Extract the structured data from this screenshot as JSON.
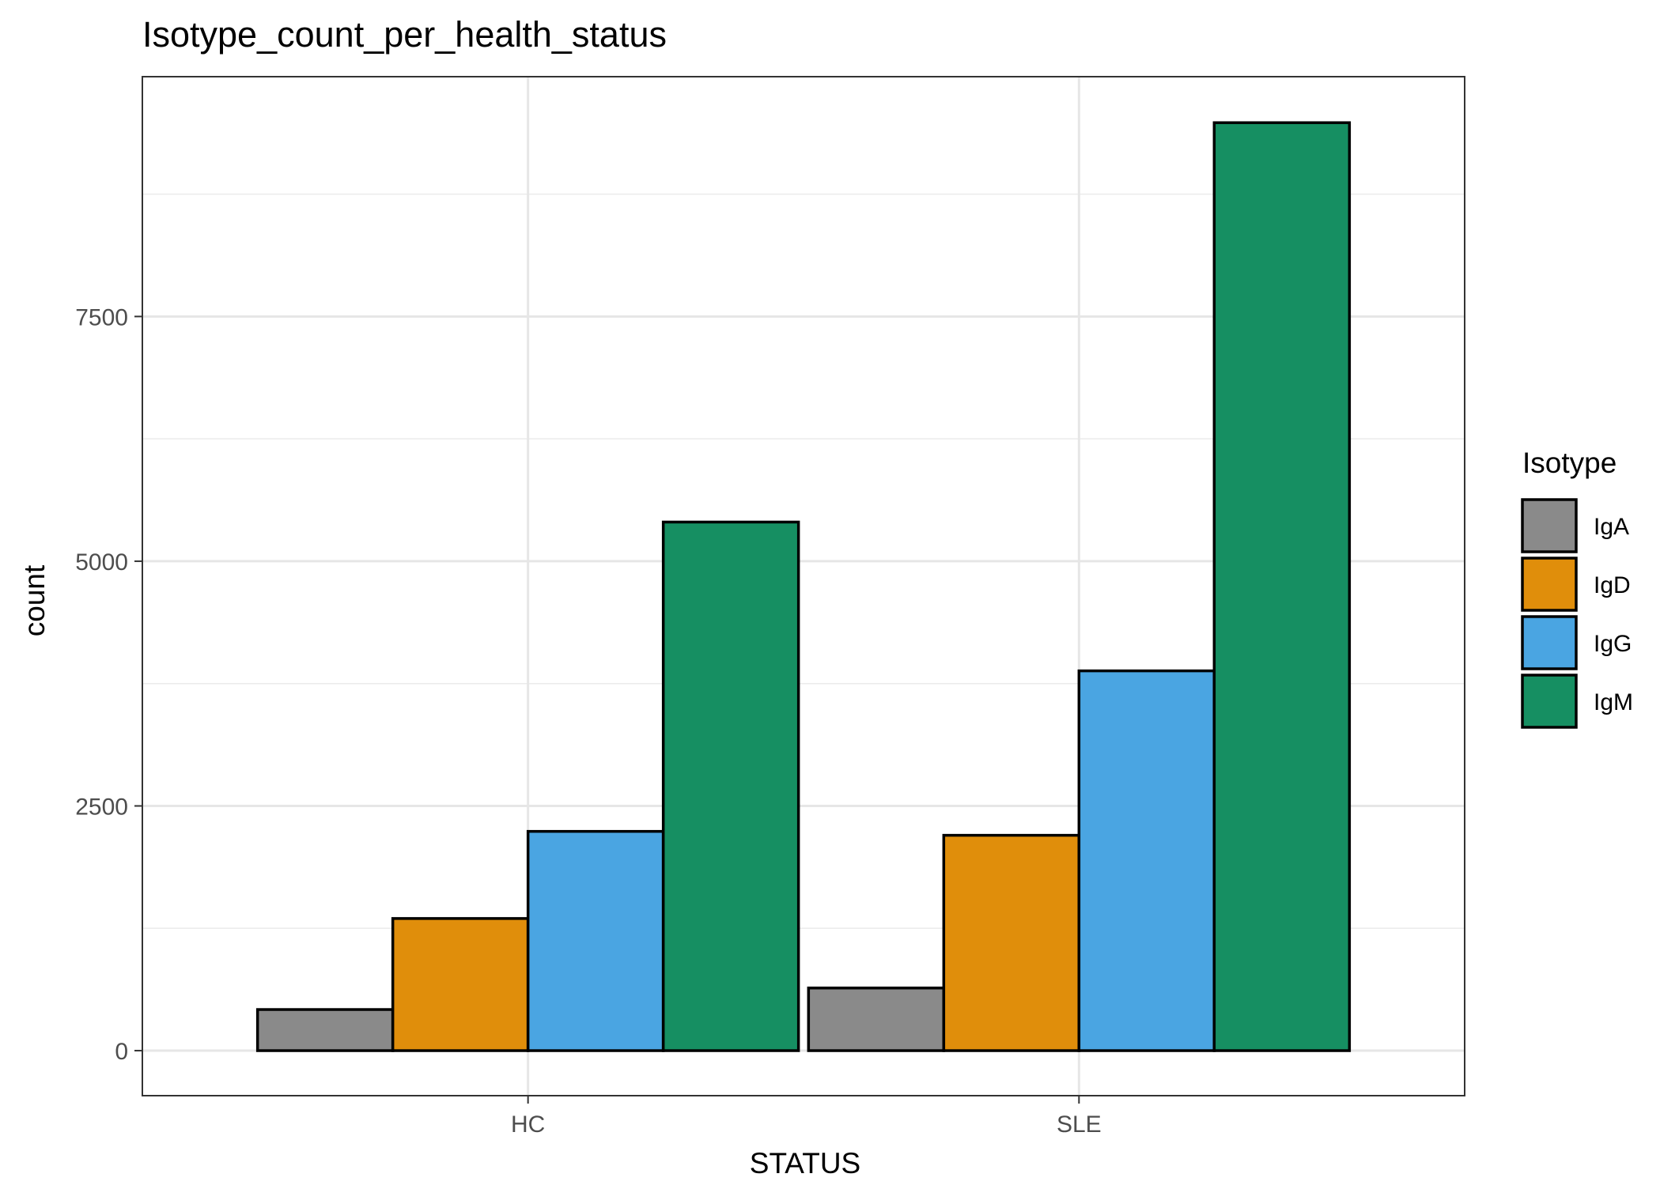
{
  "chart_data": {
    "type": "bar",
    "title": "Isotype_count_per_health_status",
    "xlabel": "STATUS",
    "ylabel": "count",
    "categories": [
      "HC",
      "SLE"
    ],
    "series": [
      {
        "name": "IgA",
        "values": [
          420,
          640
        ],
        "color": "#8a8a8a"
      },
      {
        "name": "IgD",
        "values": [
          1350,
          2200
        ],
        "color": "#e08e0b"
      },
      {
        "name": "IgG",
        "values": [
          2240,
          3880
        ],
        "color": "#4aa5e2"
      },
      {
        "name": "IgM",
        "values": [
          5400,
          9480
        ],
        "color": "#168f62"
      }
    ],
    "ylim": [
      -460,
      9950
    ],
    "yticks": [
      0,
      2500,
      5000,
      7500
    ],
    "yticks_minor": [
      1250,
      3750,
      6250,
      8750
    ],
    "grid": true,
    "legend_title": "Isotype",
    "legend_position": "right",
    "bar_edge_color": "#000000"
  }
}
